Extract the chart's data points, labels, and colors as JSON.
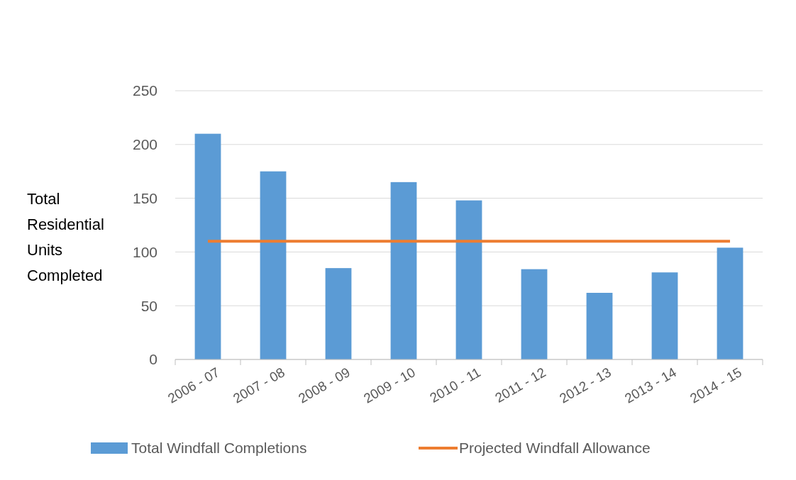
{
  "chart_data": {
    "type": "bar",
    "ylabel": "Total Residential Units Completed",
    "categories": [
      "2006 - 07",
      "2007 - 08",
      "2008 - 09",
      "2009 - 10",
      "2010 - 11",
      "2011 - 12",
      "2012 - 13",
      "2013 - 14",
      "2014 - 15"
    ],
    "series": [
      {
        "name": "Total Windfall Completions",
        "color": "#5b9bd5",
        "values": [
          210,
          175,
          85,
          165,
          148,
          84,
          62,
          81,
          104
        ]
      },
      {
        "name": "Projected Windfall Allowance",
        "type": "line",
        "color": "#ed7d31",
        "values": [
          110,
          110,
          110,
          110,
          110,
          110,
          110,
          110,
          110
        ]
      }
    ],
    "ylim": [
      0,
      250
    ],
    "yticks": [
      0,
      50,
      100,
      150,
      200,
      250
    ],
    "grid": "y",
    "legend": "bottom",
    "marker": "none",
    "line_style": "solid"
  }
}
